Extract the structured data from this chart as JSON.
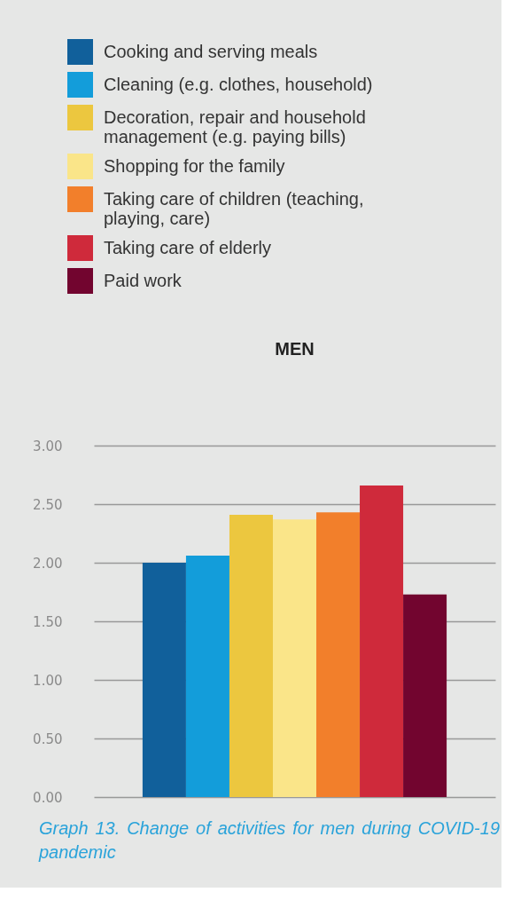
{
  "chart_data": {
    "type": "bar",
    "title": "MEN",
    "categories": [
      null
    ],
    "series": [
      {
        "name": "Cooking and serving meals",
        "color": "#11609b",
        "values": [
          2.0
        ]
      },
      {
        "name": "Cleaning (e.g. clothes, household)",
        "color": "#139dda",
        "values": [
          2.06
        ]
      },
      {
        "name": "Decoration, repair and household management (e.g. paying bills)",
        "color": "#ecc73f",
        "values": [
          2.41
        ]
      },
      {
        "name": "Shopping for the family",
        "color": "#fae589",
        "values": [
          2.37
        ]
      },
      {
        "name": "Taking care of children (teaching, playing, care)",
        "color": "#f27f2b",
        "values": [
          2.43
        ]
      },
      {
        "name": "Taking care of elderly",
        "color": "#cf2a3b",
        "values": [
          2.66
        ]
      },
      {
        "name": "Paid work",
        "color": "#72052f",
        "values": [
          1.73
        ]
      }
    ],
    "ylim": [
      0,
      3
    ],
    "yticks": [
      {
        "value": 0,
        "label": "0.00"
      },
      {
        "value": 0.5,
        "label": "0.50"
      },
      {
        "value": 1,
        "label": "1.00"
      },
      {
        "value": 1.5,
        "label": "1.50"
      },
      {
        "value": 2,
        "label": "2.00"
      },
      {
        "value": 2.5,
        "label": "2.50"
      },
      {
        "value": 3,
        "label": "3.00"
      }
    ],
    "grid": "y",
    "legend": "top",
    "annotations": [
      "Graph 13. Change of activities for men during COVID-19 pandemic"
    ]
  }
}
